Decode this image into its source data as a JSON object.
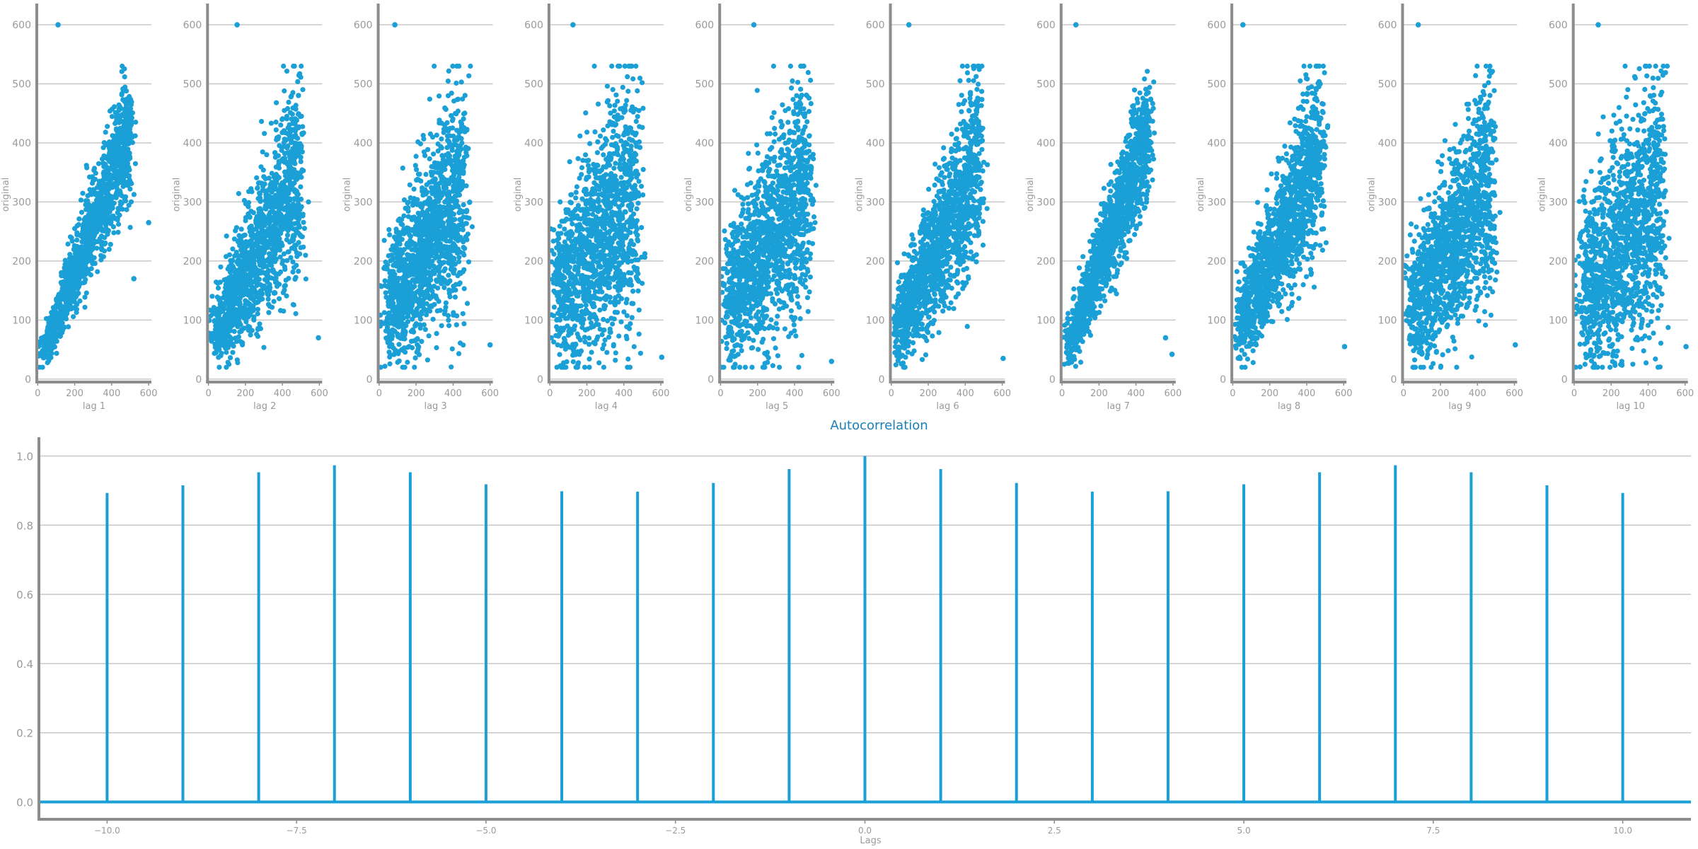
{
  "colors": {
    "series": "#1a9fd6",
    "axis": "#8c8c8c",
    "grid": "#c8c8c8",
    "tick_text": "#9a9a9a",
    "title": "#1a7fb8"
  },
  "chart_data": [
    {
      "type": "scatter",
      "xlabel": "lag 1",
      "ylabel": "original",
      "xlim": [
        -5,
        615
      ],
      "ylim": [
        -5,
        630
      ],
      "xticks": [
        "0",
        "200",
        "400",
        "600"
      ],
      "yticks": [
        "0",
        "100",
        "200",
        "300",
        "400",
        "500",
        "600"
      ],
      "grid": "horizontal",
      "outliers": [
        [
          110,
          600
        ],
        [
          600,
          265
        ],
        [
          520,
          170
        ]
      ],
      "cloud": {
        "lower_band": [
          [
            30,
            20
          ],
          [
            500,
            330
          ]
        ],
        "upper_band": [
          [
            30,
            60
          ],
          [
            500,
            520
          ]
        ]
      }
    },
    {
      "type": "scatter",
      "xlabel": "lag 2",
      "ylabel": "original",
      "xlim": [
        -5,
        615
      ],
      "ylim": [
        -5,
        630
      ],
      "xticks": [
        "0",
        "200",
        "400",
        "600"
      ],
      "yticks": [
        "0",
        "100",
        "200",
        "300",
        "400",
        "500",
        "600"
      ],
      "grid": "horizontal",
      "outliers": [
        [
          155,
          600
        ],
        [
          595,
          70
        ]
      ],
      "cloud": {
        "lower_band": [
          [
            30,
            20
          ],
          [
            500,
            200
          ]
        ],
        "upper_band": [
          [
            30,
            120
          ],
          [
            500,
            520
          ]
        ]
      }
    },
    {
      "type": "scatter",
      "xlabel": "lag 3",
      "ylabel": "original",
      "xlim": [
        -5,
        615
      ],
      "ylim": [
        -5,
        630
      ],
      "xticks": [
        "0",
        "200",
        "400",
        "600"
      ],
      "yticks": [
        "0",
        "100",
        "200",
        "300",
        "400",
        "500",
        "600"
      ],
      "grid": "horizontal",
      "outliers": [
        [
          85,
          600
        ],
        [
          600,
          58
        ]
      ],
      "cloud": {
        "lower_band": [
          [
            30,
            20
          ],
          [
            470,
            150
          ]
        ],
        "upper_band": [
          [
            30,
            200
          ],
          [
            470,
            520
          ]
        ]
      }
    },
    {
      "type": "scatter",
      "xlabel": "lag 4",
      "ylabel": "original",
      "xlim": [
        -5,
        615
      ],
      "ylim": [
        -5,
        630
      ],
      "xticks": [
        "0",
        "200",
        "400",
        "600"
      ],
      "yticks": [
        "0",
        "100",
        "200",
        "300",
        "400",
        "500",
        "600"
      ],
      "grid": "horizontal",
      "outliers": [
        [
          125,
          600
        ],
        [
          605,
          37
        ]
      ],
      "cloud": {
        "lower_band": [
          [
            30,
            20
          ],
          [
            480,
            120
          ]
        ],
        "upper_band": [
          [
            30,
            260
          ],
          [
            480,
            520
          ]
        ]
      }
    },
    {
      "type": "scatter",
      "xlabel": "lag 5",
      "ylabel": "original",
      "xlim": [
        -5,
        615
      ],
      "ylim": [
        -5,
        630
      ],
      "xticks": [
        "0",
        "200",
        "400",
        "600"
      ],
      "yticks": [
        "0",
        "100",
        "200",
        "300",
        "400",
        "500",
        "600"
      ],
      "grid": "horizontal",
      "outliers": [
        [
          180,
          600
        ],
        [
          600,
          30
        ]
      ],
      "cloud": {
        "lower_band": [
          [
            30,
            20
          ],
          [
            480,
            150
          ]
        ],
        "upper_band": [
          [
            30,
            220
          ],
          [
            480,
            520
          ]
        ]
      }
    },
    {
      "type": "scatter",
      "xlabel": "lag 6",
      "ylabel": "original",
      "xlim": [
        -5,
        615
      ],
      "ylim": [
        -5,
        630
      ],
      "xticks": [
        "0",
        "200",
        "400",
        "600"
      ],
      "yticks": [
        "0",
        "100",
        "200",
        "300",
        "400",
        "500",
        "600"
      ],
      "grid": "horizontal",
      "outliers": [
        [
          95,
          600
        ],
        [
          605,
          35
        ]
      ],
      "cloud": {
        "lower_band": [
          [
            30,
            20
          ],
          [
            480,
            230
          ]
        ],
        "upper_band": [
          [
            30,
            140
          ],
          [
            480,
            520
          ]
        ]
      }
    },
    {
      "type": "scatter",
      "xlabel": "lag 7",
      "ylabel": "original",
      "xlim": [
        -5,
        615
      ],
      "ylim": [
        -5,
        630
      ],
      "xticks": [
        "0",
        "200",
        "400",
        "600"
      ],
      "yticks": [
        "0",
        "100",
        "200",
        "300",
        "400",
        "500",
        "600"
      ],
      "grid": "horizontal",
      "outliers": [
        [
          75,
          600
        ],
        [
          595,
          42
        ],
        [
          560,
          70
        ]
      ],
      "cloud": {
        "lower_band": [
          [
            30,
            20
          ],
          [
            470,
            320
          ]
        ],
        "upper_band": [
          [
            30,
            80
          ],
          [
            470,
            520
          ]
        ]
      }
    },
    {
      "type": "scatter",
      "xlabel": "lag 8",
      "ylabel": "original",
      "xlim": [
        -5,
        615
      ],
      "ylim": [
        -5,
        630
      ],
      "xticks": [
        "0",
        "200",
        "400",
        "600"
      ],
      "yticks": [
        "0",
        "100",
        "200",
        "300",
        "400",
        "500",
        "600"
      ],
      "grid": "horizontal",
      "outliers": [
        [
          55,
          600
        ],
        [
          605,
          55
        ]
      ],
      "cloud": {
        "lower_band": [
          [
            30,
            20
          ],
          [
            480,
            250
          ]
        ],
        "upper_band": [
          [
            30,
            150
          ],
          [
            480,
            520
          ]
        ]
      }
    },
    {
      "type": "scatter",
      "xlabel": "lag 9",
      "ylabel": "original",
      "xlim": [
        -5,
        615
      ],
      "ylim": [
        -5,
        630
      ],
      "xticks": [
        "0",
        "200",
        "400",
        "600"
      ],
      "yticks": [
        "0",
        "100",
        "200",
        "300",
        "400",
        "500",
        "600"
      ],
      "grid": "horizontal",
      "outliers": [
        [
          80,
          600
        ],
        [
          605,
          58
        ]
      ],
      "cloud": {
        "lower_band": [
          [
            30,
            20
          ],
          [
            480,
            170
          ]
        ],
        "upper_band": [
          [
            30,
            200
          ],
          [
            480,
            520
          ]
        ]
      }
    },
    {
      "type": "scatter",
      "xlabel": "lag 10",
      "ylabel": "original",
      "xlim": [
        -5,
        615
      ],
      "ylim": [
        -5,
        630
      ],
      "xticks": [
        "0",
        "200",
        "400",
        "600"
      ],
      "yticks": [
        "0",
        "100",
        "200",
        "300",
        "400",
        "500",
        "600"
      ],
      "grid": "horizontal",
      "outliers": [
        [
          130,
          600
        ],
        [
          605,
          55
        ]
      ],
      "cloud": {
        "lower_band": [
          [
            30,
            20
          ],
          [
            480,
            120
          ]
        ],
        "upper_band": [
          [
            30,
            260
          ],
          [
            480,
            520
          ]
        ]
      }
    },
    {
      "type": "bar",
      "style": "stem",
      "title": "Autocorrelation",
      "xlabel": "Lags",
      "ylabel": "",
      "x": [
        -10,
        -9,
        -8,
        -7,
        -6,
        -5,
        -4,
        -3,
        -2,
        -1,
        0,
        1,
        2,
        3,
        4,
        5,
        6,
        7,
        8,
        9,
        10
      ],
      "values": [
        0.893,
        0.915,
        0.953,
        0.973,
        0.953,
        0.918,
        0.898,
        0.897,
        0.922,
        0.962,
        1.0,
        0.962,
        0.922,
        0.897,
        0.898,
        0.918,
        0.953,
        0.973,
        0.953,
        0.915,
        0.893
      ],
      "xlim": [
        -10.9,
        10.9
      ],
      "ylim": [
        -0.05,
        1.05
      ],
      "xticks": [
        "−10.0",
        "−7.5",
        "−5.0",
        "−2.5",
        "0.0",
        "2.5",
        "5.0",
        "7.5",
        "10.0"
      ],
      "xtick_values": [
        -10,
        -7.5,
        -5,
        -2.5,
        0,
        2.5,
        5,
        7.5,
        10
      ],
      "yticks": [
        "0.0",
        "0.2",
        "0.4",
        "0.6",
        "0.8",
        "1.0"
      ],
      "ytick_values": [
        0,
        0.2,
        0.4,
        0.6,
        0.8,
        1.0
      ],
      "grid": "horizontal",
      "baseline": 0
    }
  ]
}
